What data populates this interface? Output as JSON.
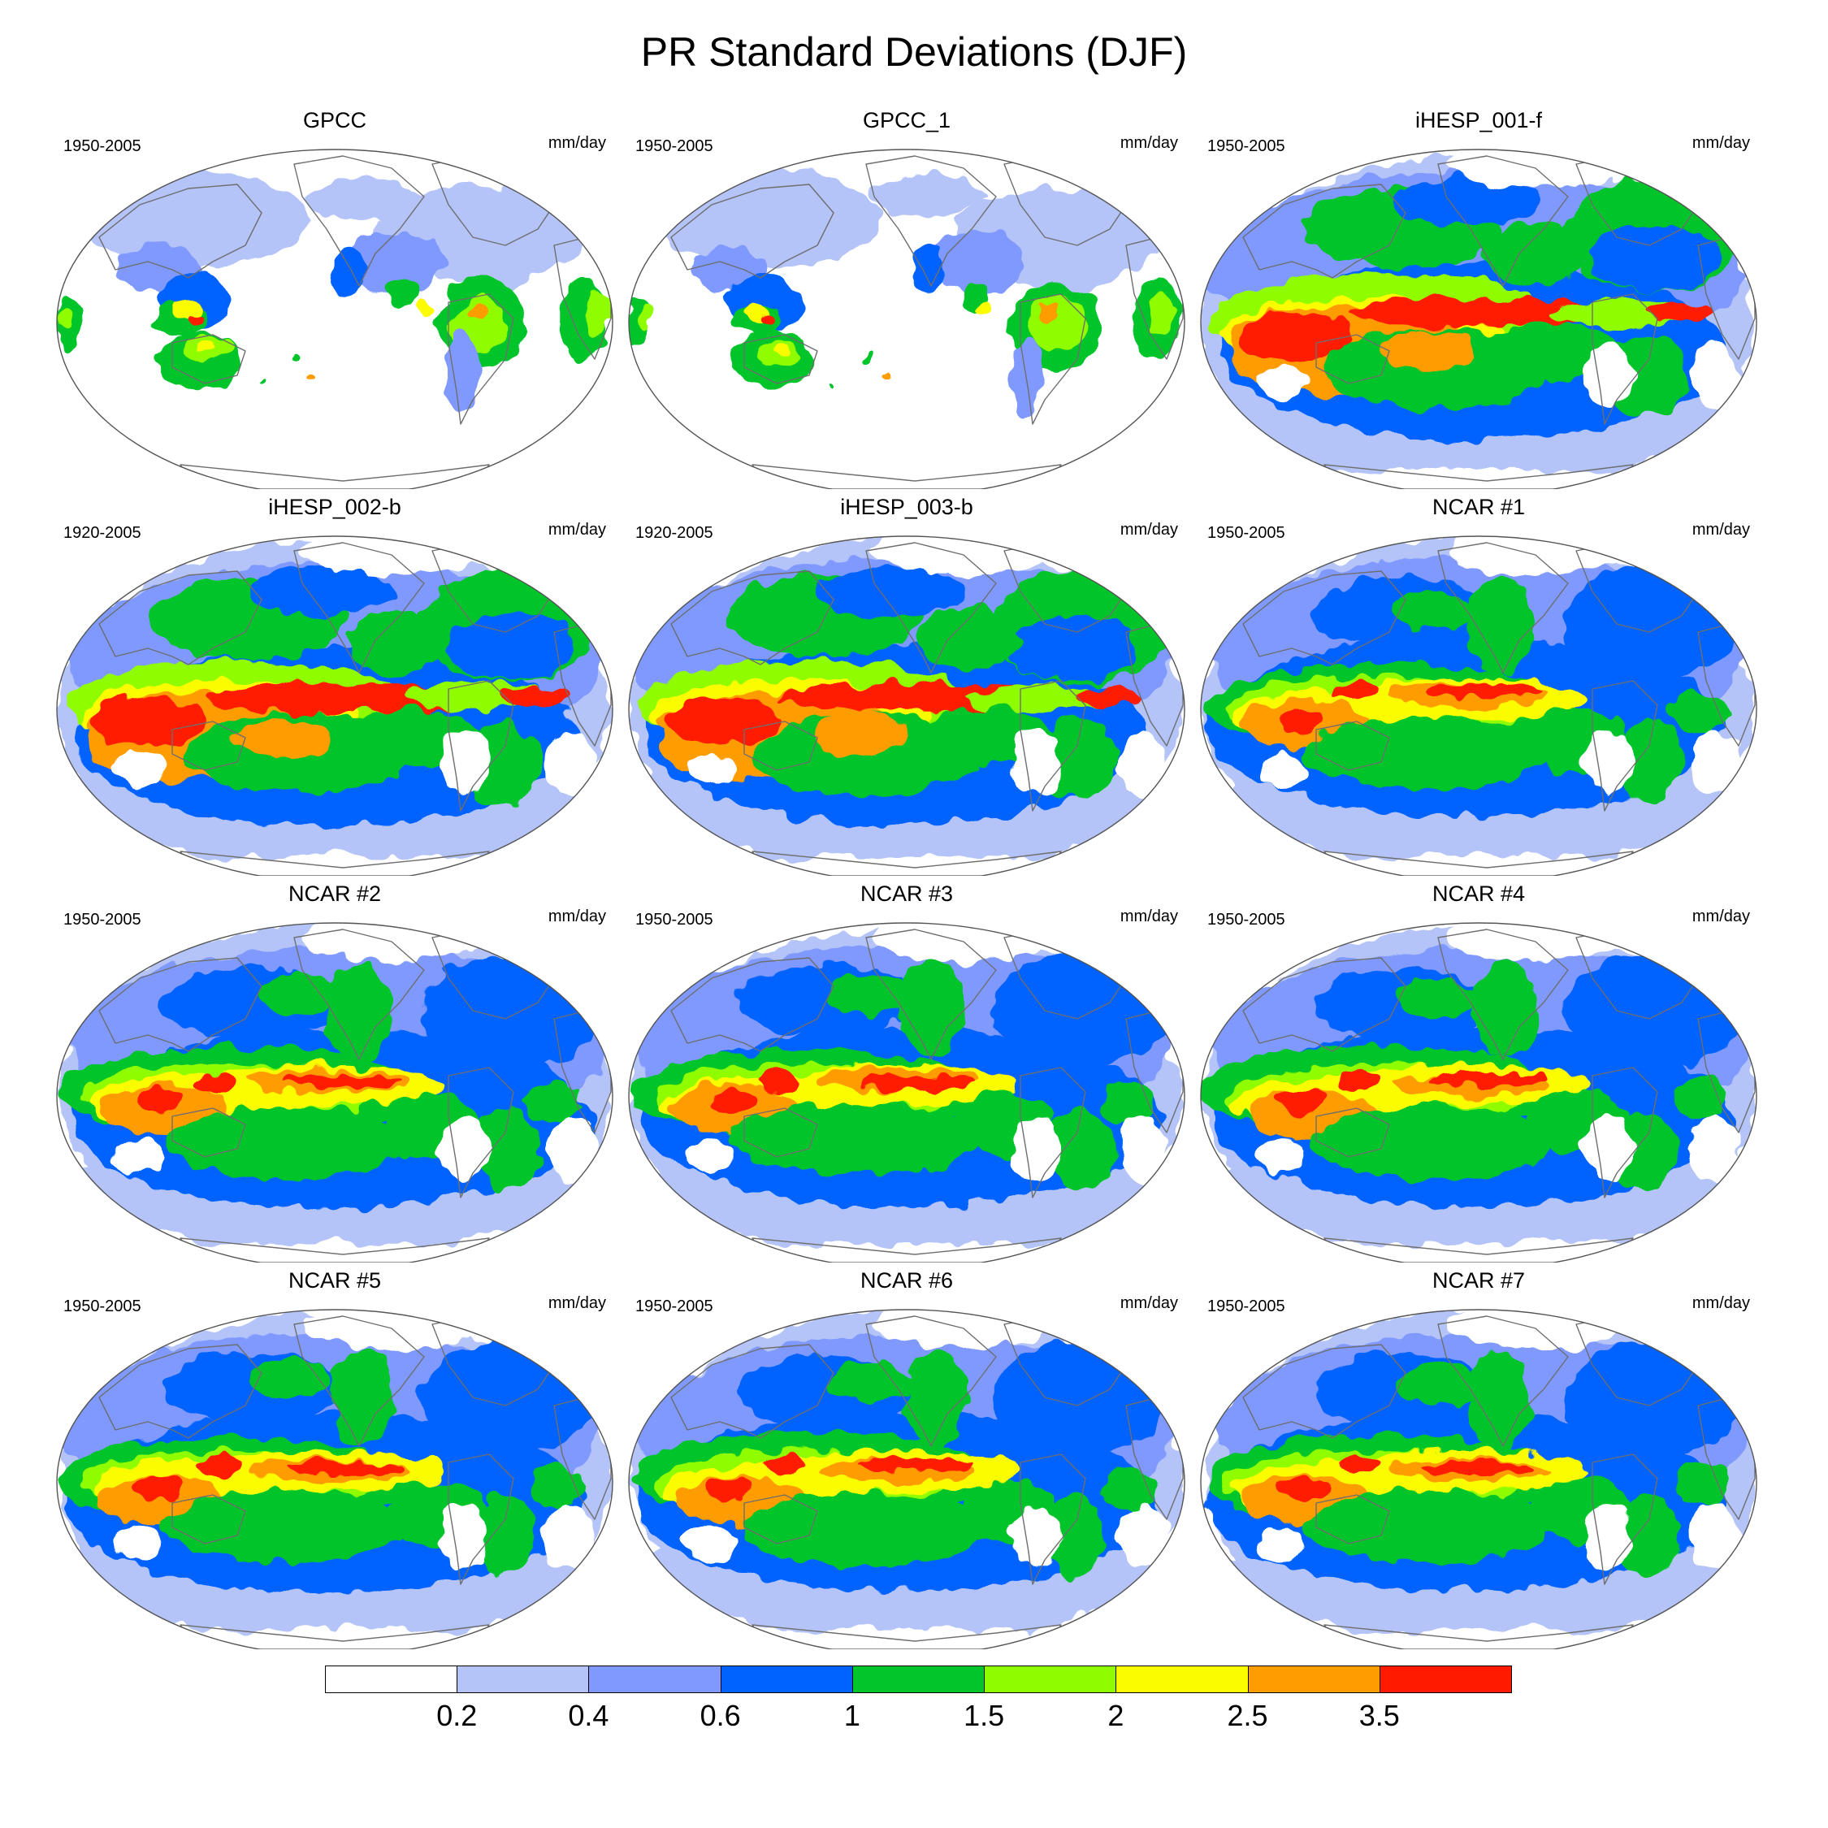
{
  "figure": {
    "title": "PR Standard Deviations (DJF)"
  },
  "panels": [
    {
      "title": "GPCC",
      "period": "1950-2005",
      "units": "mm/day",
      "pattern": "obs"
    },
    {
      "title": "GPCC_1",
      "period": "1950-2005",
      "units": "mm/day",
      "pattern": "obs"
    },
    {
      "title": "iHESP_001-f",
      "period": "1950-2005",
      "units": "mm/day",
      "pattern": "hires"
    },
    {
      "title": "iHESP_002-b",
      "period": "1920-2005",
      "units": "mm/day",
      "pattern": "hires"
    },
    {
      "title": "iHESP_003-b",
      "period": "1920-2005",
      "units": "mm/day",
      "pattern": "hires"
    },
    {
      "title": "NCAR #1",
      "period": "1950-2005",
      "units": "mm/day",
      "pattern": "model"
    },
    {
      "title": "NCAR #2",
      "period": "1950-2005",
      "units": "mm/day",
      "pattern": "model"
    },
    {
      "title": "NCAR #3",
      "period": "1950-2005",
      "units": "mm/day",
      "pattern": "model"
    },
    {
      "title": "NCAR #4",
      "period": "1950-2005",
      "units": "mm/day",
      "pattern": "model"
    },
    {
      "title": "NCAR #5",
      "period": "1950-2005",
      "units": "mm/day",
      "pattern": "model"
    },
    {
      "title": "NCAR #6",
      "period": "1950-2005",
      "units": "mm/day",
      "pattern": "model"
    },
    {
      "title": "NCAR #7",
      "period": "1950-2005",
      "units": "mm/day",
      "pattern": "model"
    }
  ],
  "colorbar": {
    "labels": [
      "0.2",
      "0.4",
      "0.6",
      "1",
      "1.5",
      "2",
      "2.5",
      "3.5"
    ],
    "colors": [
      "#ffffff",
      "#b4c4f8",
      "#7f99ff",
      "#0062ff",
      "#00c52b",
      "#8ffd00",
      "#fcfc00",
      "#ff9c00",
      "#ff1a00"
    ]
  }
}
